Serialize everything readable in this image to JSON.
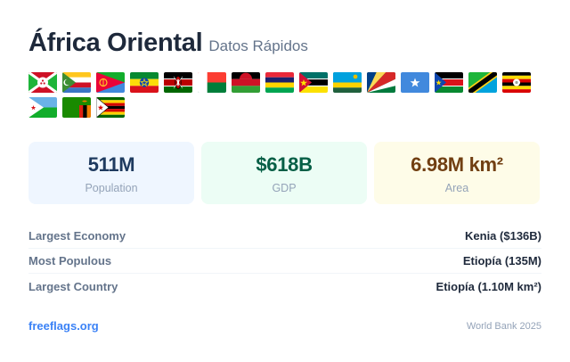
{
  "header": {
    "title": "África Oriental",
    "subtitle": "Datos Rápidos"
  },
  "flags": [
    {
      "icon": "burundi-flag-icon"
    },
    {
      "icon": "comoros-flag-icon"
    },
    {
      "icon": "eritrea-flag-icon"
    },
    {
      "icon": "ethiopia-flag-icon"
    },
    {
      "icon": "kenya-flag-icon"
    },
    {
      "icon": "madagascar-flag-icon"
    },
    {
      "icon": "malawi-flag-icon"
    },
    {
      "icon": "mauritius-flag-icon"
    },
    {
      "icon": "mozambique-flag-icon"
    },
    {
      "icon": "rwanda-flag-icon"
    },
    {
      "icon": "seychelles-flag-icon"
    },
    {
      "icon": "somalia-flag-icon"
    },
    {
      "icon": "south-sudan-flag-icon"
    },
    {
      "icon": "tanzania-flag-icon"
    },
    {
      "icon": "uganda-flag-icon"
    },
    {
      "icon": "djibouti-flag-icon"
    },
    {
      "icon": "zambia-flag-icon"
    },
    {
      "icon": "zimbabwe-flag-icon"
    }
  ],
  "stats": {
    "population": {
      "value": "511M",
      "label": "Population"
    },
    "gdp": {
      "value": "$618B",
      "label": "GDP"
    },
    "area": {
      "value": "6.98M km²",
      "label": "Area"
    }
  },
  "facts": [
    {
      "key": "Largest Economy",
      "value": "Kenia ($136B)"
    },
    {
      "key": "Most Populous",
      "value": "Etiopía (135M)"
    },
    {
      "key": "Largest Country",
      "value": "Etiopía (1.10M km²)"
    }
  ],
  "footer": {
    "brand": "freeflags.org",
    "source": "World Bank 2025"
  },
  "colors": {
    "accent": "#3b82f6",
    "population_bg": "#eff6ff",
    "gdp_bg": "#ecfdf5",
    "area_bg": "#fefce8"
  }
}
